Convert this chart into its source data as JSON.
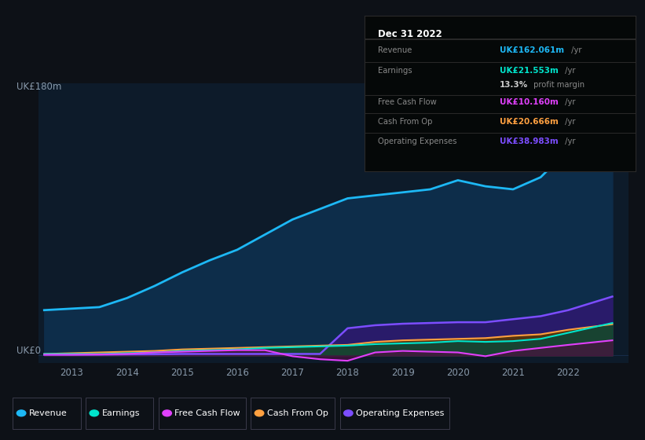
{
  "bg_color": "#0d1117",
  "plot_bg_color": "#0d1b2a",
  "years": [
    2012.5,
    2013,
    2013.5,
    2014,
    2014.5,
    2015,
    2015.5,
    2016,
    2016.5,
    2017,
    2017.5,
    2018,
    2018.5,
    2019,
    2019.5,
    2020,
    2020.5,
    2021,
    2021.5,
    2022,
    2022.8
  ],
  "revenue": [
    30,
    31,
    32,
    38,
    46,
    55,
    63,
    70,
    80,
    90,
    97,
    104,
    106,
    108,
    110,
    116,
    112,
    110,
    118,
    136,
    162
  ],
  "earnings": [
    1,
    1,
    1,
    1.5,
    2,
    3,
    3.5,
    4,
    5,
    5.5,
    6,
    6.5,
    7.5,
    8,
    8.5,
    9.5,
    9,
    9.5,
    11,
    15,
    21.5
  ],
  "free_cash_flow": [
    0.5,
    0.5,
    0.7,
    1,
    2,
    2.5,
    3,
    3.5,
    3.5,
    -0.5,
    -2.5,
    -3.5,
    2,
    3,
    2.5,
    2,
    -0.5,
    3,
    5,
    7,
    10
  ],
  "cash_from_op": [
    1,
    1.5,
    2,
    2.5,
    3,
    4,
    4.5,
    5,
    5.5,
    6,
    6.5,
    7,
    9,
    10,
    10.5,
    11,
    11.5,
    13,
    14,
    17,
    20.7
  ],
  "op_expenses": [
    0.5,
    0.5,
    0.5,
    0.7,
    0.8,
    1,
    1,
    1,
    1,
    1,
    1,
    18,
    20,
    21,
    21.5,
    22,
    22,
    24,
    26,
    30,
    39
  ],
  "revenue_color": "#1db8f5",
  "earnings_color": "#00e5cc",
  "fcf_color": "#e040fb",
  "cashop_color": "#ffa040",
  "opex_color": "#7c4dff",
  "revenue_fill": "#0d2d4a",
  "opex_fill": "#2d1a6e",
  "cashop_fill": "#5a3800",
  "earnings_fill": "#004a40",
  "fcf_fill": "#4a1040",
  "ylim": [
    -5,
    180
  ],
  "ylim_display": [
    0,
    180
  ],
  "xlim_min": 2012.4,
  "xlim_max": 2023.1,
  "ylabel_text": "UK£180m",
  "ylabel_zero": "UK£0",
  "grid_color": "#1a3050",
  "xticks": [
    2013,
    2014,
    2015,
    2016,
    2017,
    2018,
    2019,
    2020,
    2021,
    2022
  ],
  "label_color": "#8899aa",
  "tick_color": "#8899aa",
  "legend_items": [
    {
      "label": "Revenue",
      "color": "#1db8f5"
    },
    {
      "label": "Earnings",
      "color": "#00e5cc"
    },
    {
      "label": "Free Cash Flow",
      "color": "#e040fb"
    },
    {
      "label": "Cash From Op",
      "color": "#ffa040"
    },
    {
      "label": "Operating Expenses",
      "color": "#7c4dff"
    }
  ]
}
